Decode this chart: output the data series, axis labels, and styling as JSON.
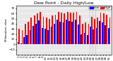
{
  "title": "Dew Point - Daily High/Low",
  "ylabel_left": "Milwaukee, dew",
  "ylim": [
    -20,
    75
  ],
  "yticks": [
    -10,
    0,
    10,
    20,
    30,
    40,
    50,
    60,
    70
  ],
  "days": [
    1,
    2,
    3,
    4,
    5,
    6,
    7,
    8,
    9,
    10,
    11,
    12,
    13,
    14,
    15,
    16,
    17,
    18,
    19,
    20,
    21,
    22,
    23,
    24,
    25,
    26,
    27,
    28,
    29,
    30,
    31
  ],
  "high": [
    30,
    28,
    40,
    44,
    52,
    56,
    60,
    63,
    54,
    52,
    50,
    56,
    58,
    63,
    61,
    60,
    63,
    61,
    61,
    63,
    56,
    40,
    42,
    40,
    54,
    50,
    52,
    62,
    60,
    57,
    52
  ],
  "low": [
    5,
    2,
    14,
    18,
    28,
    36,
    40,
    46,
    32,
    30,
    28,
    35,
    40,
    48,
    44,
    42,
    48,
    45,
    44,
    48,
    38,
    20,
    22,
    18,
    34,
    29,
    32,
    45,
    42,
    37,
    32
  ],
  "bar_width": 0.42,
  "high_color": "#ff0000",
  "low_color": "#0000ff",
  "bg_color": "#ffffff",
  "plot_bg": "#e8e8e8",
  "grid_color": "#ffffff",
  "dashed_vlines": [
    24.5,
    25.5,
    26.5
  ],
  "title_fontsize": 4.5,
  "tick_fontsize": 3.0,
  "legend_fontsize": 3.0
}
